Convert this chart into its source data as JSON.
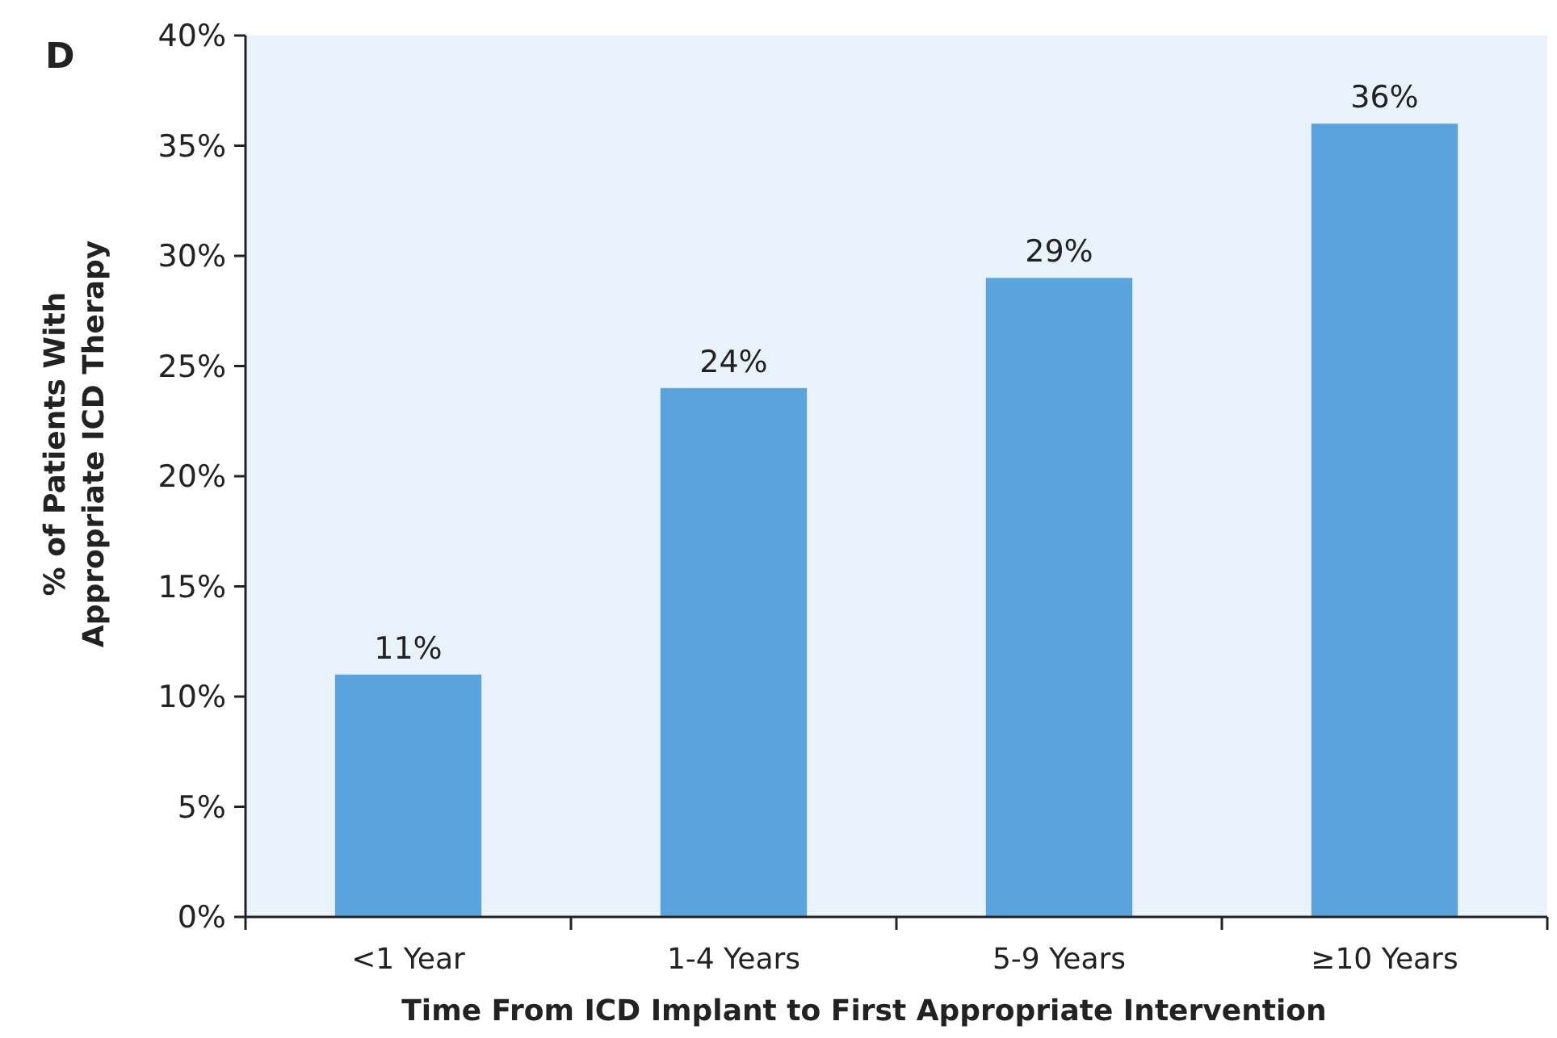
{
  "chart_data": {
    "type": "bar",
    "title": "D",
    "xlabel": "Time From ICD Implant to First Appropriate Intervention",
    "ylabel": "% of Patients With\nAppropriate ICD Therapy",
    "categories": [
      "<1 Year",
      "1-4 Years",
      "5-9 Years",
      "≥10 Years"
    ],
    "values": [
      11,
      24,
      29,
      36
    ],
    "color": "#5ba3dd",
    "value_labels": [
      "11%",
      "24%",
      "29%",
      "36%"
    ],
    "ylim": [
      0,
      40
    ],
    "yticks": [
      {
        "value": 0,
        "label": "0%"
      },
      {
        "value": 5,
        "label": "5%"
      },
      {
        "value": 10,
        "label": "10%"
      },
      {
        "value": 15,
        "label": "15%"
      },
      {
        "value": 20,
        "label": "20%"
      },
      {
        "value": 25,
        "label": "25%"
      },
      {
        "value": 30,
        "label": "30%"
      },
      {
        "value": 35,
        "label": "35%"
      },
      {
        "value": 40,
        "label": "40%"
      }
    ],
    "grid": false
  }
}
